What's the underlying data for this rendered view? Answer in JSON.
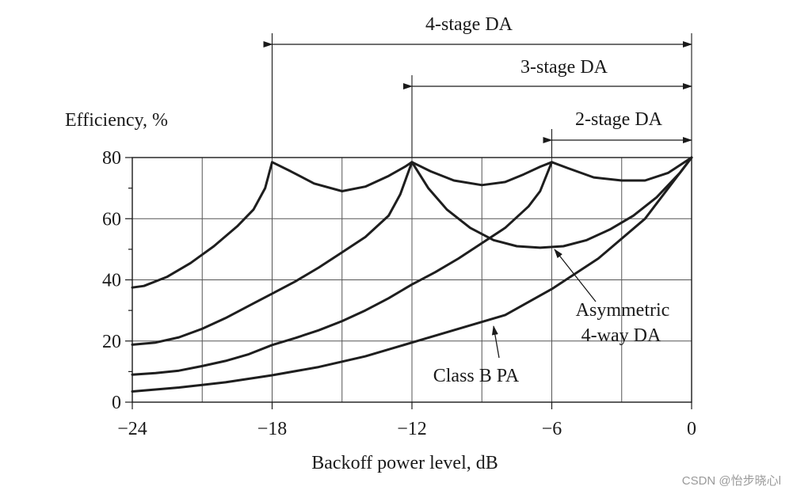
{
  "chart_data": {
    "type": "line",
    "xlabel": "Backoff power level, dB",
    "ylabel": "Efficiency, %",
    "xlim": [
      -24,
      0
    ],
    "ylim": [
      0,
      80
    ],
    "x_ticks": [
      -24,
      -18,
      -12,
      -6,
      0
    ],
    "x_tick_labels": [
      "−24",
      "−18",
      "−12",
      "−6",
      "0"
    ],
    "y_ticks": [
      0,
      20,
      40,
      60,
      80
    ],
    "y_tick_labels": [
      "0",
      "20",
      "40",
      "60",
      "80"
    ],
    "grid": true,
    "series": [
      {
        "x": [
          -24,
          -23.5,
          -22.5,
          -21.5,
          -20.5,
          -19.5,
          -18.8,
          -18.3,
          -18,
          -17.2,
          -16.2,
          -15,
          -14,
          -13,
          -12.3,
          -12
        ],
        "y": [
          37.5,
          38,
          41,
          45.5,
          51,
          57.5,
          63,
          70,
          78.5,
          75.5,
          71.5,
          69,
          70.5,
          74,
          77,
          78.5
        ]
      },
      {
        "x": [
          -24,
          -23,
          -22,
          -21,
          -20,
          -19,
          -18,
          -17,
          -16,
          -15,
          -14,
          -13,
          -12.5,
          -12
        ],
        "y": [
          18.8,
          19.5,
          21.2,
          24,
          27.5,
          31.5,
          35.5,
          39.5,
          44,
          49,
          54,
          61,
          68,
          78.5
        ]
      },
      {
        "x": [
          -12,
          -11.2,
          -10.2,
          -9,
          -8,
          -7.2,
          -6.5,
          -6
        ],
        "y": [
          78.5,
          75.5,
          72.5,
          71,
          72,
          74.5,
          77,
          78.5
        ]
      },
      {
        "x": [
          -6,
          -5.3,
          -4.2,
          -3,
          -2,
          -1,
          0
        ],
        "y": [
          78.5,
          76.5,
          73.5,
          72.5,
          72.5,
          75,
          80
        ]
      },
      {
        "x": [
          -12,
          -11.3,
          -10.5,
          -9.5,
          -8.5,
          -7.5,
          -6.5,
          -5.5,
          -4.5,
          -3.5,
          -2.5,
          -1.5,
          -0.5,
          0
        ],
        "y": [
          78.5,
          70,
          63,
          57,
          53,
          51,
          50.5,
          51,
          53,
          56.5,
          61,
          67,
          75,
          80
        ]
      },
      {
        "x": [
          -24,
          -23,
          -22,
          -21,
          -20,
          -19,
          -18,
          -17,
          -16,
          -15,
          -14,
          -13,
          -12,
          -11,
          -10,
          -9,
          -8,
          -7,
          -6.5,
          -6
        ],
        "y": [
          9,
          9.5,
          10.3,
          11.8,
          13.5,
          15.7,
          18.7,
          21,
          23.5,
          26.5,
          30,
          34,
          38.5,
          42.5,
          47,
          52,
          57,
          64,
          69,
          78.5
        ]
      },
      {
        "x": [
          -24,
          -22,
          -20,
          -18,
          -16,
          -14,
          -12,
          -10,
          -8,
          -6,
          -4,
          -2,
          0
        ],
        "y": [
          3.5,
          4.8,
          6.5,
          8.8,
          11.5,
          15,
          19.5,
          24,
          28.5,
          37,
          47,
          60,
          80
        ]
      }
    ],
    "annotations": [
      {
        "id": "four_stage",
        "text": "4-stage DA",
        "from_x": -18,
        "to_x": 0
      },
      {
        "id": "three_stage",
        "text": "3-stage DA",
        "from_x": -12,
        "to_x": 0
      },
      {
        "id": "two_stage",
        "text": "2-stage DA",
        "from_x": -6,
        "to_x": 0
      },
      {
        "id": "asym",
        "lines": [
          "Asymmetric",
          "4-way DA"
        ],
        "points_to": [
          -5.5,
          51
        ]
      },
      {
        "id": "classb",
        "text": "Class B PA",
        "points_to": [
          -8.6,
          27
        ]
      }
    ]
  },
  "watermark": "CSDN @怡步晓心l",
  "colors": {
    "curve": "#1e1e1e",
    "grid": "#555555",
    "axis": "#1a1a1a"
  }
}
